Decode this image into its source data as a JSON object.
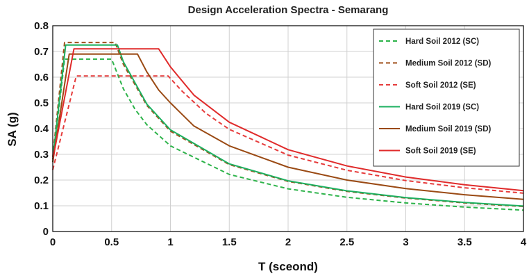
{
  "chart_data": {
    "type": "line",
    "title": "Design Acceleration Spectra - Semarang",
    "xlabel": "T (sceond)",
    "ylabel": "SA (g)",
    "xlim": [
      0,
      4
    ],
    "ylim": [
      0,
      0.8
    ],
    "xticks": [
      0,
      0.5,
      1,
      1.5,
      2,
      2.5,
      3,
      3.5,
      4
    ],
    "xtick_labels": [
      "0",
      "0.5",
      "1",
      "1.5",
      "2",
      "2.5",
      "3",
      "3.5",
      "4"
    ],
    "yticks": [
      0,
      0.1,
      0.2,
      0.3,
      0.4,
      0.5,
      0.6,
      0.7,
      0.8
    ],
    "ytick_labels": [
      "0",
      "0.1",
      "0.2",
      "0.3",
      "0.4",
      "0.5",
      "0.6",
      "0.7",
      "0.8"
    ],
    "grid": true,
    "legend_position": "top-right",
    "series": [
      {
        "name": "Hard Soil 2012 (SC)",
        "color": "#2db34a",
        "dashed": true,
        "x": [
          0,
          0.1,
          0.5,
          0.6,
          0.7,
          0.8,
          1,
          1.5,
          2,
          2.5,
          3,
          3.5,
          4
        ],
        "y": [
          0.27,
          0.67,
          0.67,
          0.555,
          0.475,
          0.415,
          0.333,
          0.222,
          0.166,
          0.133,
          0.111,
          0.095,
          0.083
        ]
      },
      {
        "name": "Medium Soil 2012 (SD)",
        "color": "#a0521d",
        "dashed": true,
        "x": [
          0,
          0.1,
          0.53,
          0.6,
          0.8,
          1,
          1.5,
          2,
          2.5,
          3,
          3.5,
          4
        ],
        "y": [
          0.29,
          0.735,
          0.735,
          0.65,
          0.49,
          0.39,
          0.26,
          0.195,
          0.156,
          0.13,
          0.111,
          0.097
        ]
      },
      {
        "name": "Soft Soil 2012 (SE)",
        "color": "#e63c3c",
        "dashed": true,
        "x": [
          0,
          0.2,
          0.98,
          1.1,
          1.3,
          1.5,
          2,
          2.5,
          3,
          3.5,
          4
        ],
        "y": [
          0.24,
          0.605,
          0.605,
          0.545,
          0.46,
          0.397,
          0.297,
          0.238,
          0.198,
          0.17,
          0.149
        ]
      },
      {
        "name": "Hard Soil 2019 (SC)",
        "color": "#1db060",
        "dashed": false,
        "x": [
          0,
          0.11,
          0.55,
          0.6,
          0.8,
          1,
          1.5,
          2,
          2.5,
          3,
          3.5,
          4
        ],
        "y": [
          0.28,
          0.725,
          0.725,
          0.66,
          0.495,
          0.395,
          0.263,
          0.197,
          0.158,
          0.132,
          0.113,
          0.099
        ]
      },
      {
        "name": "Medium Soil 2019 (SD)",
        "color": "#9a4a14",
        "dashed": false,
        "x": [
          0,
          0.14,
          0.72,
          0.8,
          0.9,
          1,
          1.2,
          1.5,
          2,
          2.5,
          3,
          3.5,
          4
        ],
        "y": [
          0.27,
          0.69,
          0.69,
          0.62,
          0.55,
          0.5,
          0.41,
          0.333,
          0.25,
          0.2,
          0.167,
          0.143,
          0.125
        ]
      },
      {
        "name": "Soft Soil 2019 (SE)",
        "color": "#e02b2b",
        "dashed": false,
        "x": [
          0,
          0.18,
          0.9,
          1,
          1.2,
          1.5,
          2,
          2.5,
          3,
          3.5,
          4
        ],
        "y": [
          0.28,
          0.71,
          0.71,
          0.64,
          0.53,
          0.425,
          0.318,
          0.255,
          0.212,
          0.182,
          0.159
        ]
      }
    ]
  }
}
